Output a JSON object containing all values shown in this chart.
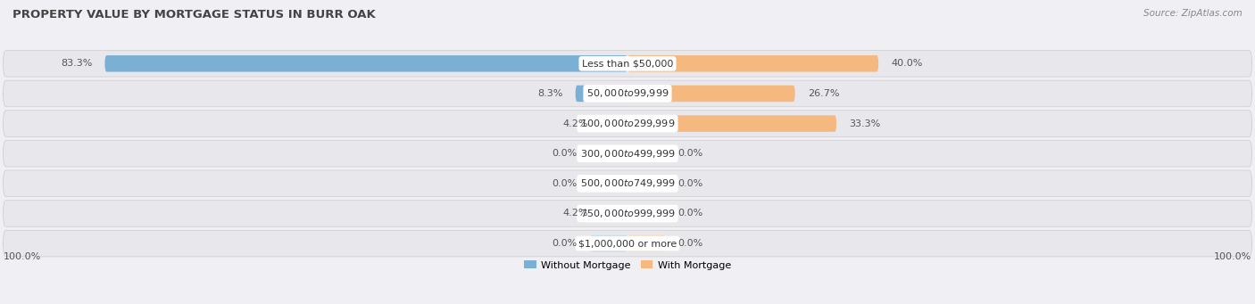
{
  "title": "PROPERTY VALUE BY MORTGAGE STATUS IN BURR OAK",
  "source": "Source: ZipAtlas.com",
  "categories": [
    "Less than $50,000",
    "$50,000 to $99,999",
    "$100,000 to $299,999",
    "$300,000 to $499,999",
    "$500,000 to $749,999",
    "$750,000 to $999,999",
    "$1,000,000 or more"
  ],
  "without_mortgage": [
    83.3,
    8.3,
    4.2,
    0.0,
    0.0,
    4.2,
    0.0
  ],
  "with_mortgage": [
    40.0,
    26.7,
    33.3,
    0.0,
    0.0,
    0.0,
    0.0
  ],
  "without_mortgage_color": "#7bafd4",
  "with_mortgage_color": "#f5b97f",
  "with_mortgage_zero_color": "#f5d9b8",
  "without_mortgage_zero_color": "#b8d4ea",
  "row_bg_color": "#e8e8ec",
  "fig_bg_color": "#f0f0f4",
  "label_bg_color": "#ffffff",
  "without_mortgage_label": "Without Mortgage",
  "with_mortgage_label": "With Mortgage",
  "left_axis_label": "100.0%",
  "right_axis_label": "100.0%",
  "max_value": 100.0,
  "zero_bar_size": 6.0,
  "figwidth": 14.06,
  "figheight": 3.41,
  "dpi": 100,
  "title_fontsize": 9.5,
  "label_fontsize": 8.0,
  "value_fontsize": 8.0,
  "cat_fontsize": 8.0
}
